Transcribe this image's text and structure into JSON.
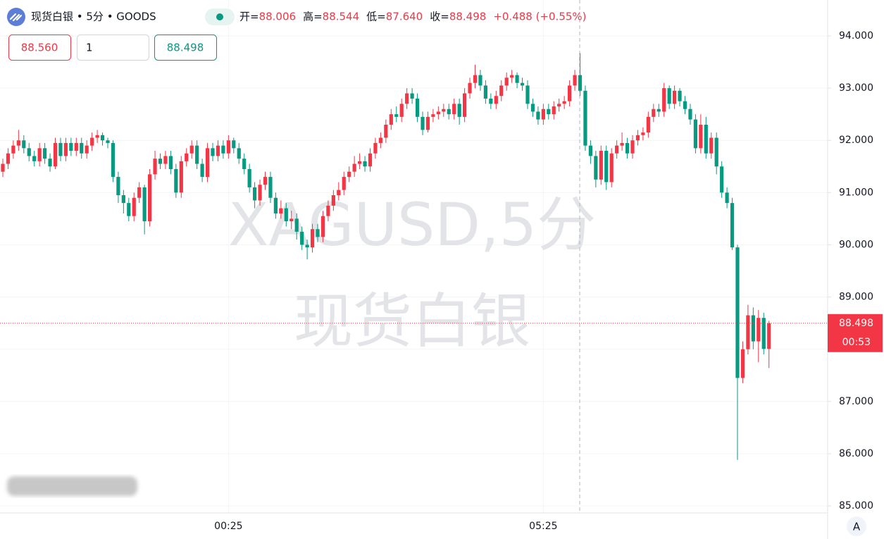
{
  "header": {
    "symbol": "现货白银 • 5分 • GOODS",
    "ohlc": [
      {
        "label": "开=",
        "value": "88.006"
      },
      {
        "label": "高=",
        "value": "88.544"
      },
      {
        "label": "低=",
        "value": "87.640"
      },
      {
        "label": "收=",
        "value": "88.498"
      }
    ],
    "change": "+0.488 (+0.55%)"
  },
  "order_panel": {
    "sell": "88.560",
    "quantity": "1",
    "buy": "88.498"
  },
  "chart_data": {
    "type": "candlestick",
    "categories": [
      null,
      null,
      null,
      null,
      null,
      null,
      null,
      null,
      null,
      null,
      null,
      null,
      null,
      null,
      null,
      null,
      null,
      null,
      null,
      null,
      null,
      null,
      null,
      null,
      null,
      null,
      null,
      null,
      null,
      null,
      null,
      null,
      null,
      null,
      null,
      null,
      null,
      null,
      null,
      null,
      null,
      null,
      null,
      "00:25",
      null,
      null,
      null,
      null,
      null,
      null,
      null,
      null,
      null,
      null,
      null,
      null,
      null,
      null,
      null,
      null,
      null,
      null,
      null,
      null,
      null,
      null,
      null,
      null,
      null,
      null,
      null,
      null,
      null,
      null,
      null,
      null,
      null,
      null,
      null,
      null,
      null,
      null,
      null,
      null,
      null,
      null,
      null,
      null,
      null,
      null,
      null,
      null,
      null,
      null,
      null,
      null,
      null,
      null,
      null,
      null,
      null,
      null,
      null,
      "05:25",
      null,
      null,
      null,
      null,
      null,
      null,
      null,
      null,
      null,
      null,
      null,
      null,
      null,
      null,
      null,
      null,
      null,
      null,
      null,
      null,
      null,
      null,
      null,
      null,
      null,
      null,
      null,
      null,
      null,
      null,
      null,
      null,
      null,
      null,
      null,
      null,
      null,
      null,
      null,
      null,
      null,
      null,
      null
    ],
    "open": [
      91.4,
      91.55,
      91.75,
      91.9,
      92.0,
      91.85,
      91.7,
      91.6,
      91.85,
      91.65,
      91.5,
      91.95,
      91.7,
      91.95,
      91.8,
      91.95,
      91.75,
      91.9,
      92.05,
      92.1,
      92.0,
      91.95,
      91.3,
      90.95,
      90.8,
      90.55,
      90.9,
      91.1,
      90.45,
      91.35,
      91.65,
      91.55,
      91.7,
      91.45,
      91.0,
      91.6,
      91.75,
      91.9,
      91.55,
      91.3,
      91.85,
      91.7,
      91.9,
      91.75,
      92.0,
      91.85,
      91.65,
      91.45,
      91.1,
      90.85,
      91.15,
      91.3,
      90.9,
      90.6,
      90.7,
      90.45,
      90.5,
      90.25,
      90.0,
      89.95,
      90.3,
      90.15,
      90.55,
      90.75,
      90.95,
      91.05,
      91.3,
      91.4,
      91.55,
      91.6,
      91.5,
      91.75,
      91.95,
      92.05,
      92.3,
      92.5,
      92.45,
      92.7,
      92.9,
      92.8,
      92.45,
      92.2,
      92.45,
      92.5,
      92.55,
      92.6,
      92.5,
      92.7,
      92.45,
      92.9,
      93.1,
      93.25,
      93.05,
      92.8,
      92.7,
      92.85,
      93.05,
      93.2,
      93.25,
      93.1,
      93.05,
      92.7,
      92.55,
      92.4,
      92.6,
      92.5,
      92.65,
      92.7,
      92.75,
      93.05,
      93.25,
      92.95,
      91.9,
      91.7,
      91.25,
      91.8,
      91.2,
      91.75,
      91.9,
      91.95,
      91.75,
      92.0,
      92.1,
      92.15,
      92.45,
      92.6,
      92.55,
      93.0,
      92.7,
      92.95,
      92.75,
      92.6,
      92.4,
      91.85,
      92.3,
      91.75,
      92.05,
      91.5,
      91.0,
      90.8,
      89.95,
      87.45,
      88.0,
      88.65,
      88.15,
      88.6,
      88.006
    ],
    "high": [
      91.65,
      91.85,
      92.0,
      92.2,
      92.1,
      91.95,
      91.8,
      91.95,
      91.95,
      91.75,
      92.05,
      92.05,
      92.05,
      92.05,
      92.05,
      92.05,
      92.0,
      92.15,
      92.2,
      92.15,
      92.05,
      92.0,
      91.4,
      91.05,
      90.9,
      91.0,
      91.2,
      91.15,
      91.45,
      91.8,
      91.75,
      91.8,
      91.8,
      91.55,
      91.7,
      91.85,
      92.0,
      92.0,
      91.65,
      91.95,
      91.95,
      92.0,
      92.0,
      92.1,
      92.05,
      91.95,
      91.75,
      91.55,
      91.2,
      91.25,
      91.4,
      91.4,
      91.0,
      90.85,
      90.8,
      90.65,
      90.6,
      90.35,
      90.1,
      90.4,
      90.4,
      90.65,
      90.85,
      91.05,
      91.2,
      91.4,
      91.5,
      91.7,
      91.75,
      91.7,
      91.85,
      92.05,
      92.15,
      92.4,
      92.6,
      92.65,
      92.8,
      93.0,
      93.0,
      92.9,
      92.55,
      92.55,
      92.6,
      92.65,
      92.7,
      92.7,
      92.8,
      92.8,
      93.0,
      93.2,
      93.45,
      93.35,
      93.15,
      92.9,
      92.95,
      93.15,
      93.3,
      93.35,
      93.3,
      93.2,
      93.15,
      92.8,
      92.65,
      92.7,
      92.7,
      92.75,
      92.8,
      92.85,
      93.15,
      93.35,
      93.67,
      93.05,
      92.0,
      91.8,
      91.9,
      91.9,
      91.85,
      92.0,
      92.15,
      92.05,
      92.1,
      92.2,
      92.25,
      92.55,
      92.7,
      92.7,
      93.1,
      93.05,
      93.05,
      93.0,
      92.85,
      92.7,
      92.5,
      92.5,
      92.45,
      92.15,
      92.15,
      91.6,
      91.1,
      90.9,
      90.0,
      88.15,
      88.85,
      88.8,
      88.75,
      88.7,
      88.544
    ],
    "low": [
      91.3,
      91.45,
      91.65,
      91.8,
      91.75,
      91.6,
      91.5,
      91.5,
      91.55,
      91.4,
      91.45,
      91.6,
      91.6,
      91.7,
      91.7,
      91.65,
      91.65,
      91.8,
      91.95,
      91.9,
      91.85,
      91.2,
      90.8,
      90.6,
      90.45,
      90.45,
      90.8,
      90.2,
      90.35,
      91.25,
      91.45,
      91.45,
      91.35,
      90.9,
      90.9,
      91.5,
      91.65,
      91.45,
      91.2,
      91.2,
      91.6,
      91.6,
      91.65,
      91.65,
      91.75,
      91.55,
      91.35,
      91.0,
      90.7,
      90.75,
      91.05,
      90.8,
      90.5,
      90.5,
      90.35,
      90.3,
      90.1,
      89.9,
      89.72,
      89.85,
      90.05,
      90.05,
      90.45,
      90.65,
      90.85,
      90.95,
      91.2,
      91.3,
      91.45,
      91.4,
      91.4,
      91.65,
      91.85,
      91.95,
      92.2,
      92.35,
      92.35,
      92.6,
      92.7,
      92.35,
      92.1,
      92.15,
      92.35,
      92.4,
      92.45,
      92.4,
      92.4,
      92.3,
      92.35,
      92.8,
      93.0,
      92.95,
      92.7,
      92.6,
      92.6,
      92.75,
      92.95,
      93.1,
      93.0,
      92.95,
      92.6,
      92.45,
      92.3,
      92.3,
      92.4,
      92.4,
      92.55,
      92.6,
      92.65,
      92.95,
      92.85,
      91.8,
      91.55,
      91.1,
      91.15,
      91.05,
      91.1,
      91.65,
      91.8,
      91.65,
      91.65,
      91.9,
      92.0,
      92.05,
      92.35,
      92.45,
      92.45,
      92.6,
      92.6,
      92.65,
      92.5,
      92.3,
      91.75,
      91.75,
      91.65,
      91.65,
      91.35,
      90.9,
      90.7,
      89.9,
      85.88,
      87.35,
      87.9,
      88.0,
      87.75,
      87.9,
      87.64
    ],
    "close": [
      91.55,
      91.75,
      91.9,
      92.0,
      91.85,
      91.7,
      91.6,
      91.85,
      91.65,
      91.5,
      91.95,
      91.7,
      91.95,
      91.8,
      91.95,
      91.75,
      91.9,
      92.05,
      92.1,
      92.0,
      91.95,
      91.3,
      90.95,
      90.8,
      90.55,
      90.9,
      91.1,
      90.45,
      91.35,
      91.65,
      91.55,
      91.7,
      91.45,
      91.0,
      91.6,
      91.75,
      91.9,
      91.55,
      91.3,
      91.85,
      91.7,
      91.9,
      91.75,
      92.0,
      91.85,
      91.65,
      91.45,
      91.1,
      90.85,
      91.15,
      91.3,
      90.9,
      90.6,
      90.7,
      90.45,
      90.5,
      90.25,
      90.0,
      89.95,
      90.3,
      90.15,
      90.55,
      90.75,
      90.95,
      91.05,
      91.3,
      91.4,
      91.55,
      91.6,
      91.5,
      91.75,
      91.95,
      92.05,
      92.3,
      92.5,
      92.45,
      92.7,
      92.9,
      92.8,
      92.45,
      92.2,
      92.45,
      92.5,
      92.55,
      92.6,
      92.5,
      92.7,
      92.45,
      92.9,
      93.1,
      93.25,
      93.05,
      92.8,
      92.7,
      92.85,
      93.05,
      93.2,
      93.25,
      93.1,
      93.05,
      92.7,
      92.55,
      92.4,
      92.6,
      92.5,
      92.65,
      92.7,
      92.75,
      93.05,
      93.25,
      92.95,
      91.9,
      91.7,
      91.25,
      91.8,
      91.2,
      91.75,
      91.9,
      91.95,
      91.75,
      92.0,
      92.1,
      92.15,
      92.45,
      92.6,
      92.55,
      93.0,
      92.7,
      92.95,
      92.75,
      92.6,
      92.4,
      91.85,
      92.3,
      91.75,
      92.05,
      91.5,
      91.0,
      90.8,
      89.95,
      87.45,
      88.0,
      88.65,
      88.15,
      88.6,
      88.006,
      88.498
    ],
    "up_color": "#f23645",
    "down_color": "#089981",
    "ylim": [
      84.865,
      94.688
    ],
    "yticks": [
      {
        "value": 85,
        "label": "85.000"
      },
      {
        "value": 86,
        "label": "86.000"
      },
      {
        "value": 87,
        "label": "87.000"
      },
      {
        "value": 88,
        "label": "88.000"
      },
      {
        "value": 89,
        "label": "89.000"
      },
      {
        "value": 90,
        "label": "90.000"
      },
      {
        "value": 91,
        "label": "91.000"
      },
      {
        "value": 92,
        "label": "92.000"
      },
      {
        "value": 93,
        "label": "93.000"
      },
      {
        "value": 94,
        "label": "94.000"
      }
    ],
    "grid": true,
    "watermark": [
      "XAGUSD,5分",
      "现货白银"
    ],
    "countdown": "00:53",
    "axis_button": "A"
  }
}
